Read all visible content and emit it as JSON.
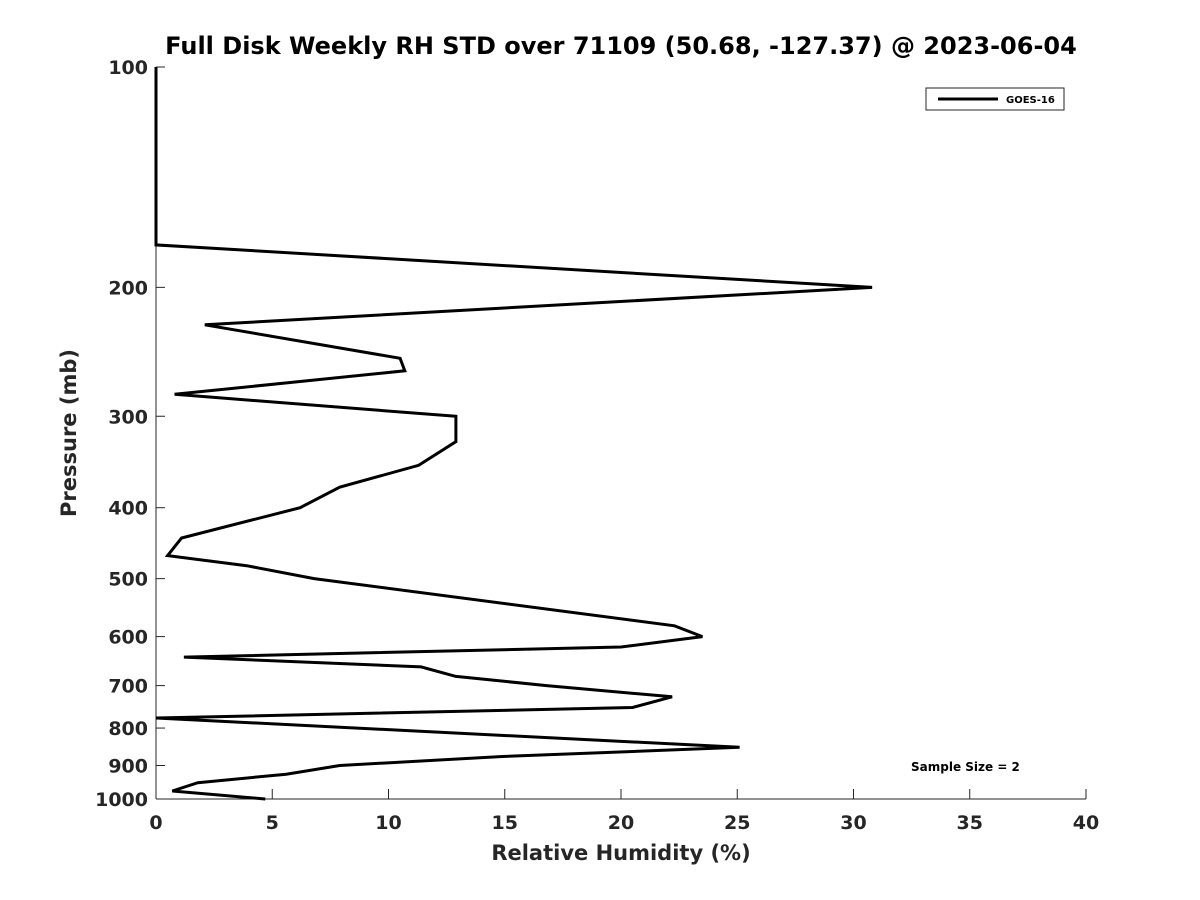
{
  "chart_data": {
    "type": "line",
    "title": "Full Disk Weekly RH STD over 71109 (50.68, -127.37) @ 2023-06-04",
    "xlabel": "Relative Humidity (%)",
    "ylabel": "Pressure (mb)",
    "xlim": [
      0,
      40
    ],
    "ylim": [
      100,
      1000
    ],
    "y_scale": "log",
    "y_reversed": true,
    "x_ticks": [
      "0",
      "5",
      "10",
      "15",
      "20",
      "25",
      "30",
      "35",
      "40"
    ],
    "x_tick_values": [
      0,
      5,
      10,
      15,
      20,
      25,
      30,
      35,
      40
    ],
    "y_ticks": [
      "100",
      "200",
      "300",
      "400",
      "500",
      "600",
      "700",
      "800",
      "900",
      "1000"
    ],
    "y_tick_values": [
      100,
      200,
      300,
      400,
      500,
      600,
      700,
      800,
      900,
      1000
    ],
    "grid": false,
    "legend_position": "top-right",
    "annotation": "Sample Size = 2",
    "series": [
      {
        "name": "GOES-16",
        "color": "#000000",
        "x": [
          0,
          0,
          30.8,
          2.1,
          10.5,
          10.7,
          0.8,
          12.9,
          12.9,
          11.3,
          7.9,
          6.2,
          1.1,
          0.5,
          3.9,
          6.8,
          22.3,
          23.5,
          20.0,
          1.2,
          11.4,
          12.9,
          16.8,
          22.2,
          20.5,
          0,
          25.1,
          14.9,
          7.9,
          5.6,
          1.8,
          0.7,
          4.7
        ],
        "y": [
          100,
          175,
          200,
          225,
          250,
          260,
          280,
          300,
          325,
          350,
          375,
          400,
          440,
          465,
          480,
          500,
          580,
          600,
          620,
          640,
          660,
          680,
          700,
          725,
          750,
          775,
          850,
          875,
          900,
          925,
          950,
          975,
          1000
        ]
      }
    ]
  }
}
